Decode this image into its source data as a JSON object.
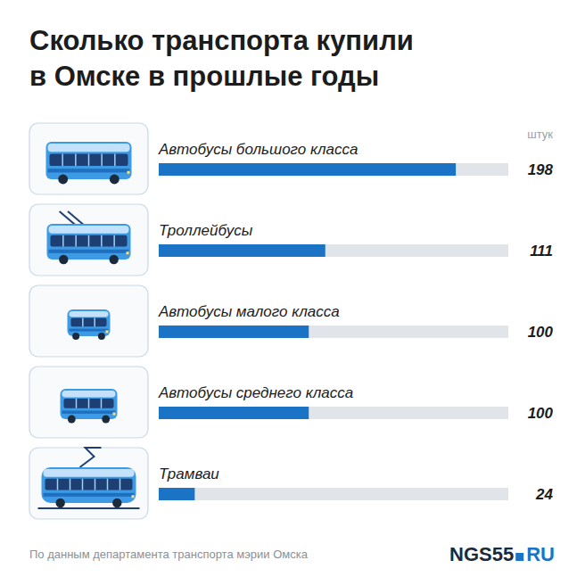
{
  "chart_data": {
    "type": "bar",
    "orientation": "horizontal",
    "title": "Сколько транспорта купили в Омске в прошлые годы",
    "unit": "штук",
    "categories": [
      "Автобусы большого класса",
      "Троллейбусы",
      "Автобусы малого класса",
      "Автобусы среднего класса",
      "Трамваи"
    ],
    "values": [
      198,
      111,
      100,
      100,
      24
    ],
    "color": "#1a73c4",
    "xlim": [
      0,
      233
    ],
    "tick_labels": false,
    "grid": false,
    "data_labels": true
  },
  "footer": {
    "source": "По данным департамента транспорта мэрии Омска",
    "logo": "NGS55",
    "logo_suffix": "RU"
  }
}
